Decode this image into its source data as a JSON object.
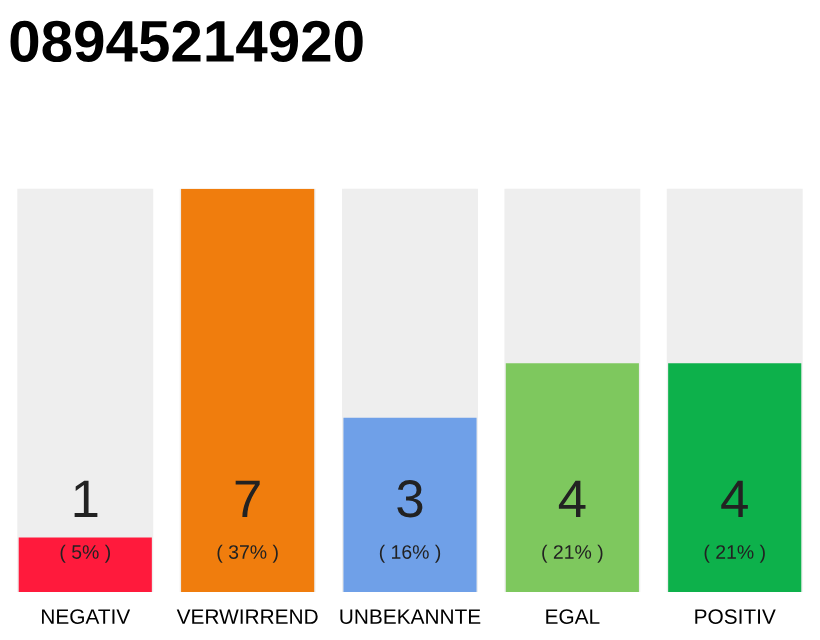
{
  "chart_data": {
    "type": "bar",
    "title": "08945214920",
    "categories": [
      "NEGATIV",
      "VERWIRREND",
      "UNBEKANNTE",
      "EGAL",
      "POSITIV"
    ],
    "values": [
      5,
      37,
      16,
      21,
      21
    ],
    "annotations": [
      "1",
      "7",
      "3",
      "4",
      "4"
    ],
    "colors": [
      "#ff1a3c",
      "#f07d0d",
      "#6fa0e8",
      "#7ec85e",
      "#0db14b"
    ],
    "value_labels": [
      "( 5% )",
      "( 37% )",
      "( 16% )",
      "( 21% )",
      "( 21% )"
    ],
    "grid": false,
    "legend": false
  }
}
